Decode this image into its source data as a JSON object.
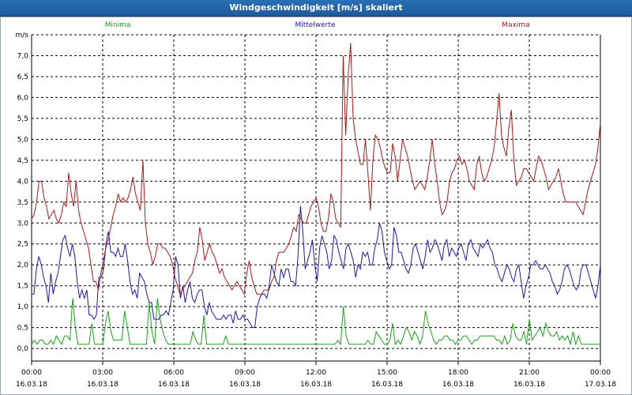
{
  "window": {
    "title": "Windgeschwindigkeit [m/s] skaliert"
  },
  "chart_data": {
    "type": "line",
    "title": "Windgeschwindigkeit [m/s] skaliert",
    "ylabel": "m/s",
    "ylim": [
      -0.3,
      7.5
    ],
    "xlim": [
      0,
      24
    ],
    "grid": true,
    "legend_placement": "top",
    "yticks": [
      "0,0",
      "0,5",
      "1,0",
      "1,5",
      "2,0",
      "2,5",
      "3,0",
      "3,5",
      "4,0",
      "4,5",
      "5,0",
      "5,5",
      "6,0",
      "6,5",
      "7,0"
    ],
    "xticks": [
      {
        "time": "00:00",
        "date": "16.03.18"
      },
      {
        "time": "03:00",
        "date": "16.03.18"
      },
      {
        "time": "06:00",
        "date": "16.03.18"
      },
      {
        "time": "09:00",
        "date": "16.03.18"
      },
      {
        "time": "12:00",
        "date": "16.03.18"
      },
      {
        "time": "15:00",
        "date": "16.03.18"
      },
      {
        "time": "18:00",
        "date": "16.03.18"
      },
      {
        "time": "21:00",
        "date": "16.03.18"
      },
      {
        "time": "00:00",
        "date": "17.03.18"
      }
    ],
    "series": [
      {
        "name": "Minima",
        "color": "#1aa31a",
        "values": [
          0.1,
          0.2,
          0.1,
          0.2,
          0.2,
          0.1,
          0.1,
          0.2,
          0.1,
          0.3,
          0.2,
          0.1,
          0.3,
          0.3,
          0.2,
          1.2,
          0.5,
          0.1,
          0.1,
          0.1,
          0.1,
          0.1,
          0.6,
          0.1,
          0.1,
          0.1,
          0.1,
          0.6,
          0.9,
          0.4,
          0.2,
          0.2,
          0.2,
          0.2,
          0.9,
          0.5,
          0.1,
          0.1,
          0.1,
          0.1,
          0.1,
          0.1,
          0.1,
          1.1,
          0.4,
          0.1,
          1.2,
          0.7,
          0.4,
          0.2,
          0.1,
          0.1,
          0.1,
          0.1,
          0.1,
          0.1,
          0.1,
          0.1,
          0.1,
          0.4,
          0.2,
          0.1,
          0.1,
          0.8,
          0.1,
          0.1,
          0.1,
          0.1,
          0.1,
          0.1,
          0.1,
          0.3,
          0.1,
          0.1,
          0.1,
          0.1,
          0.1,
          0.1,
          0.1,
          0.1,
          0.1,
          0.1,
          0.1,
          0.1,
          0.1,
          0.1,
          0.1,
          0.1,
          0.1,
          0.1,
          0.1,
          0.1,
          0.1,
          0.1,
          0.1,
          0.1,
          0.1,
          0.1,
          0.1,
          0.1,
          0.1,
          0.1,
          0.1,
          0.1,
          0.1,
          0.1,
          0.1,
          0.1,
          0.1,
          0.1,
          0.1,
          0.1,
          0.2,
          0.1,
          1.0,
          0.3,
          0.1,
          0.1,
          0.1,
          0.1,
          0.1,
          0.1,
          0.1,
          0.2,
          0.1,
          0.1,
          0.4,
          0.3,
          0.2,
          0.1,
          0.1,
          0.2,
          0.6,
          0.1,
          0.2,
          0.1,
          0.3,
          0.5,
          0.4,
          0.2,
          0.4,
          0.3,
          0.1,
          0.3,
          0.9,
          0.6,
          0.4,
          0.2,
          0.1,
          0.2,
          0.2,
          0.3,
          0.3,
          0.2,
          0.2,
          0.1,
          0.2,
          0.2,
          0.3,
          0.3,
          0.2,
          0.1,
          0.2,
          0.2,
          0.3,
          0.3,
          0.3,
          0.3,
          0.3,
          0.3,
          0.2,
          0.2,
          0.1,
          0.3,
          0.1,
          0.2,
          0.6,
          0.3,
          0.2,
          0.2,
          0.4,
          0.1,
          0.7,
          0.2,
          0.3,
          0.4,
          0.5,
          0.3,
          0.6,
          0.4,
          0.3,
          0.3,
          0.4,
          0.2,
          0.3,
          0.2,
          0.3,
          0.1,
          0.4,
          0.1,
          0.3,
          0.1,
          0.1,
          0.1,
          0.1,
          0.1,
          0.1,
          0.1,
          0.1
        ]
      },
      {
        "name": "Mittelwerte",
        "color": "#1a1aa8",
        "values": [
          1.3,
          1.3,
          1.9,
          2.2,
          2.0,
          1.7,
          1.5,
          1.1,
          1.8,
          1.3,
          1.6,
          1.8,
          2.2,
          2.6,
          2.7,
          2.4,
          2.2,
          2.5,
          2.2,
          1.6,
          1.2,
          1.4,
          1.2,
          1.4,
          0.8,
          0.8,
          0.7,
          0.8,
          1.7,
          1.7,
          1.9,
          2.5,
          2.8,
          2.3,
          2.3,
          2.2,
          2.4,
          2.2,
          2.2,
          2.5,
          2.1,
          1.6,
          1.3,
          1.4,
          1.2,
          1.8,
          1.7,
          1.6,
          1.3,
          1.1,
          1.1,
          0.7,
          0.7,
          0.7,
          0.8,
          0.8,
          0.9,
          0.8,
          1.1,
          1.4,
          2.2,
          2.0,
          1.2,
          1.5,
          1.1,
          1.4,
          1.6,
          1.2,
          1.1,
          1.3,
          1.4,
          1.4,
          1.0,
          0.8,
          1.1,
          0.9,
          0.8,
          0.7,
          0.7,
          0.7,
          0.8,
          0.7,
          0.8,
          0.8,
          0.6,
          0.9,
          0.7,
          0.7,
          0.8,
          0.7,
          0.7,
          0.6,
          0.5,
          0.5,
          1.0,
          1.2,
          1.3,
          1.3,
          1.2,
          1.5,
          2.0,
          1.8,
          1.6,
          1.5,
          1.9,
          1.7,
          1.9,
          1.9,
          1.6,
          1.6,
          1.5,
          2.2,
          3.4,
          2.8,
          1.9,
          2.1,
          2.3,
          2.6,
          2.0,
          1.6,
          2.4,
          2.7,
          2.5,
          2.3,
          1.9,
          2.1,
          2.7,
          2.6,
          2.3,
          2.1,
          1.9,
          2.4,
          2.5,
          2.3,
          2.1,
          1.7,
          2.0,
          1.9,
          2.3,
          2.2,
          2.3,
          2.0,
          2.0,
          2.4,
          2.6,
          3.0,
          2.8,
          2.3,
          2.1,
          1.9,
          2.0,
          2.9,
          2.7,
          2.3,
          2.3,
          2.1,
          1.9,
          1.8,
          2.0,
          2.4,
          2.5,
          2.3,
          2.1,
          1.9,
          2.2,
          2.6,
          2.3,
          2.4,
          2.6,
          2.5,
          2.3,
          2.1,
          2.5,
          2.6,
          2.2,
          2.4,
          2.3,
          2.2,
          2.4,
          2.5,
          2.3,
          2.1,
          2.5,
          2.6,
          2.4,
          2.3,
          2.2,
          2.5,
          2.4,
          2.5,
          2.6,
          2.4,
          2.3,
          2.0,
          1.9,
          1.7,
          1.6,
          1.8,
          2.0,
          1.9,
          1.7,
          1.6,
          1.9,
          2.0,
          1.6,
          1.2,
          1.5,
          1.7,
          2.0,
          2.0,
          2.1,
          2.0,
          1.9,
          1.9,
          2.0,
          1.9,
          1.8,
          1.6,
          1.5,
          1.3,
          1.4,
          1.6,
          1.9,
          2.0,
          1.9,
          1.7,
          1.5,
          1.4,
          1.5,
          1.9,
          2.0,
          2.0,
          1.8,
          1.6,
          1.4,
          1.2,
          1.5,
          2.0
        ]
      },
      {
        "name": "Maxima",
        "color": "#a81a1a",
        "values": [
          3.1,
          3.2,
          3.5,
          4.0,
          4.0,
          3.6,
          3.4,
          3.1,
          3.2,
          3.3,
          3.1,
          3.0,
          3.2,
          3.5,
          3.4,
          4.2,
          3.7,
          3.4,
          4.0,
          3.3,
          3.0,
          2.8,
          2.6,
          2.4,
          2.0,
          1.6,
          1.6,
          1.4,
          1.8,
          2.1,
          2.4,
          2.6,
          2.9,
          3.2,
          3.4,
          3.7,
          3.5,
          3.6,
          3.5,
          3.6,
          3.8,
          4.1,
          3.7,
          3.5,
          3.3,
          4.5,
          3.0,
          2.5,
          2.3,
          2.0,
          2.2,
          2.5,
          2.5,
          2.4,
          2.4,
          2.3,
          2.2,
          2.0,
          1.7,
          1.5,
          1.3,
          1.4,
          1.5,
          1.6,
          1.7,
          1.8,
          2.1,
          2.3,
          2.9,
          2.6,
          2.1,
          2.3,
          2.5,
          2.3,
          2.2,
          2.0,
          1.8,
          1.9,
          1.7,
          1.6,
          1.5,
          1.4,
          1.5,
          1.6,
          1.5,
          1.4,
          1.3,
          1.8,
          2.1,
          1.7,
          1.5,
          1.3,
          1.3,
          1.3,
          1.4,
          1.4,
          1.4,
          1.6,
          1.7,
          2.1,
          2.3,
          2.3,
          2.3,
          2.4,
          2.5,
          2.7,
          2.9,
          2.8,
          3.2,
          3.1,
          3.0,
          3.0,
          3.2,
          3.4,
          3.5,
          3.6,
          3.4,
          3.0,
          2.8,
          2.8,
          3.1,
          3.7,
          3.5,
          3.1,
          3.0,
          2.9,
          7.0,
          5.1,
          6.5,
          7.3,
          5.5,
          5.0,
          4.7,
          4.4,
          4.4,
          5.0,
          4.2,
          3.3,
          4.5,
          5.1,
          5.0,
          4.8,
          4.5,
          4.3,
          4.2,
          4.2,
          4.9,
          4.6,
          4.0,
          4.5,
          5.0,
          4.8,
          4.6,
          4.3,
          4.0,
          3.8,
          3.9,
          4.0,
          3.9,
          3.8,
          4.1,
          4.5,
          5.0,
          4.4,
          4.0,
          3.5,
          3.2,
          3.3,
          3.5,
          4.0,
          4.2,
          4.3,
          4.5,
          4.6,
          4.4,
          4.5,
          4.3,
          4.0,
          3.9,
          3.8,
          4.4,
          4.6,
          4.2,
          4.0,
          4.1,
          4.3,
          4.5,
          4.8,
          5.4,
          6.1,
          5.1,
          4.8,
          4.6,
          5.3,
          5.7,
          4.5,
          3.9,
          4.0,
          4.1,
          4.3,
          4.3,
          4.2,
          4.1,
          4.0,
          4.3,
          4.6,
          4.5,
          4.3,
          4.1,
          3.8,
          3.9,
          4.0,
          4.1,
          4.3,
          4.0,
          3.7,
          3.5,
          3.5,
          3.5,
          3.5,
          3.5,
          3.4,
          3.3,
          3.2,
          3.5,
          3.8,
          4.0,
          4.2,
          4.4,
          4.8,
          5.4
        ]
      }
    ]
  }
}
